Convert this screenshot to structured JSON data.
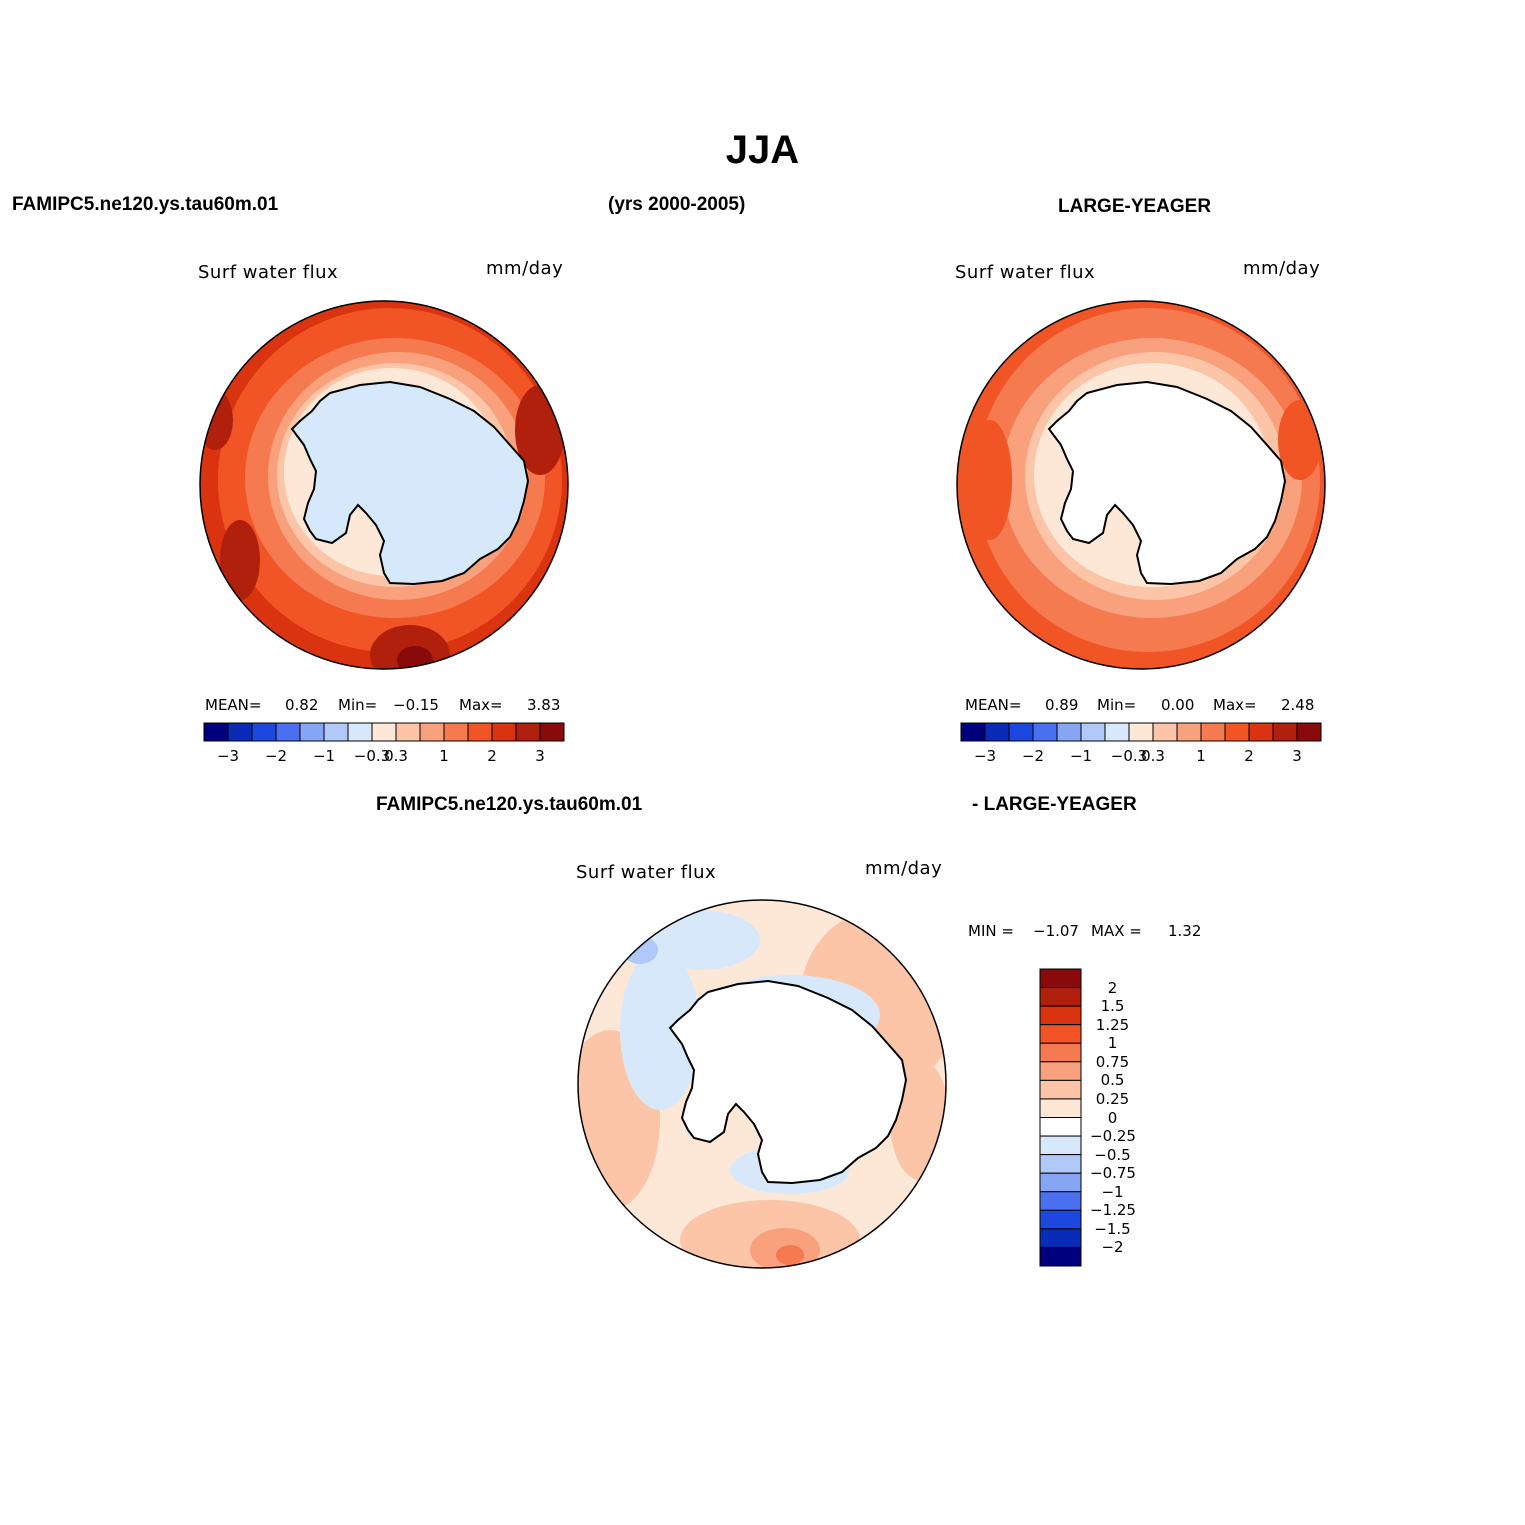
{
  "figure": {
    "title": "JJA",
    "case_name": "FAMIPC5.ne120.ys.tau60m.01",
    "years": "(yrs 2000-2005)",
    "obs_name": "LARGE-YEAGER",
    "diff_left": "FAMIPC5.ne120.ys.tau60m.01",
    "diff_right": "- LARGE-YEAGER"
  },
  "panels": [
    {
      "id": "model",
      "variable": "Surf water flux",
      "units": "mm/day",
      "mean_label": "MEAN=",
      "mean": "0.82",
      "min_label": "Min=",
      "min": "−0.15",
      "max_label": "Max=",
      "max": "3.83",
      "ice_color": "#d6e8fc"
    },
    {
      "id": "obs",
      "variable": "Surf water flux",
      "units": "mm/day",
      "mean_label": "MEAN=",
      "mean": "0.89",
      "min_label": "Min=",
      "min": "0.00",
      "max_label": "Max=",
      "max": "2.48",
      "ice_color": "#ffffff"
    },
    {
      "id": "diff",
      "variable": "Surf water flux",
      "units": "mm/day",
      "min_label": "MIN =",
      "min": "−1.07",
      "max_label": "MAX =",
      "max": "1.32"
    }
  ],
  "colorbar_horizontal": {
    "colors": [
      "#00007f",
      "#0a2bb8",
      "#1c48e0",
      "#4a70f0",
      "#86a6f5",
      "#b1c9f8",
      "#d8e8fb",
      "#fde8d8",
      "#fcc5a7",
      "#f9a07d",
      "#f57a50",
      "#f15425",
      "#d9340f",
      "#b1200c",
      "#880a0a"
    ],
    "ticks": [
      "−3",
      "−2",
      "−1",
      "−0.3",
      "0.3",
      "1",
      "2",
      "3"
    ]
  },
  "colorbar_vertical": {
    "colors_top_to_bottom": [
      "#880a0a",
      "#b1200c",
      "#d9340f",
      "#f15425",
      "#f57a50",
      "#f9a07d",
      "#fcc5a7",
      "#fde8d8",
      "#ffffff",
      "#d8e8fb",
      "#b1c9f8",
      "#86a6f5",
      "#4a70f0",
      "#1c48e0",
      "#0a2bb8",
      "#00007f"
    ],
    "labels": [
      "2",
      "1.5",
      "1.25",
      "1",
      "0.75",
      "0.5",
      "0.25",
      "0",
      "−0.25",
      "−0.5",
      "−0.75",
      "−1",
      "−1.25",
      "−1.5",
      "−2"
    ]
  }
}
